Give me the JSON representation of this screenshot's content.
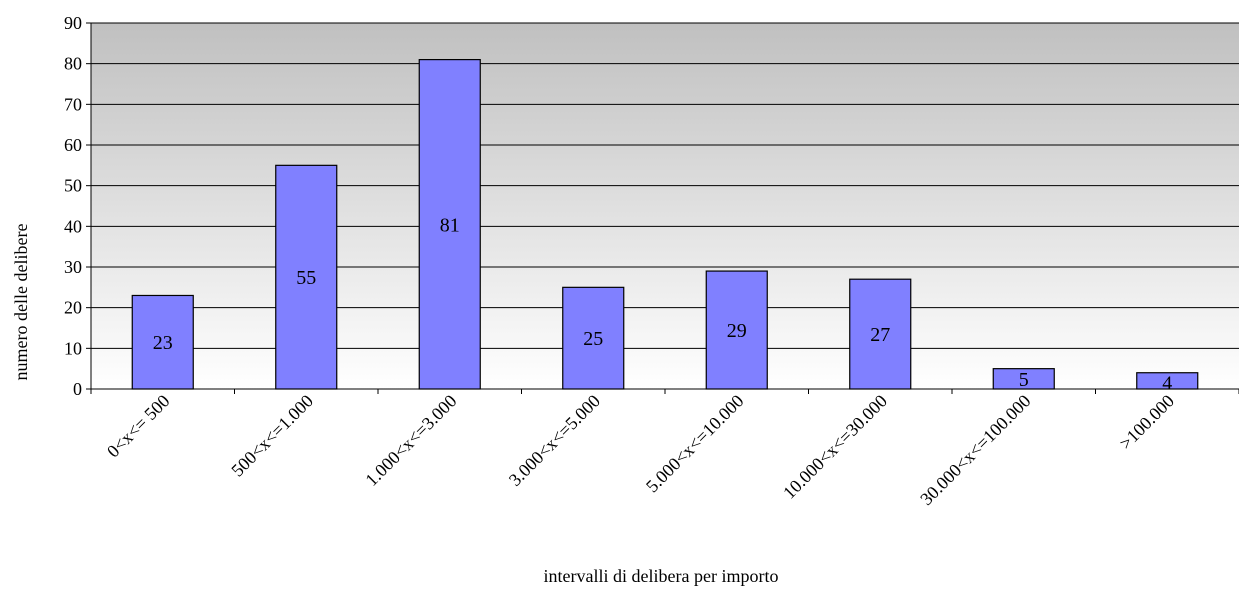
{
  "chart_data": {
    "type": "bar",
    "title": "",
    "xlabel": "intervalli di delibera per importo",
    "ylabel": "numero delle delibere",
    "categories": [
      "0<x<= 500",
      "500<x<=1.000",
      "1.000<x<=3.000",
      "3.000<x<=5.000",
      "5.000<x<=10.000",
      "10.000<x<=30.000",
      "30.000<x<=100.000",
      ">100.000"
    ],
    "values": [
      23,
      55,
      81,
      25,
      29,
      27,
      5,
      4
    ],
    "data_labels": [
      "23",
      "55",
      "81",
      "25",
      "29",
      "27",
      "5",
      "4"
    ],
    "ylim": [
      0,
      90
    ],
    "yticks": [
      0,
      10,
      20,
      30,
      40,
      50,
      60,
      70,
      80,
      90
    ],
    "ytick_labels": [
      "0",
      "10",
      "20",
      "30",
      "40",
      "50",
      "60",
      "70",
      "80",
      "90"
    ],
    "grid": true,
    "legend": "none",
    "colors": {
      "bar_fill": "#8080FF",
      "bar_stroke": "#000000",
      "grid": "#000000",
      "plot_gradient_top": "#C0C0C0",
      "plot_gradient_bottom": "#FFFFFF"
    }
  }
}
